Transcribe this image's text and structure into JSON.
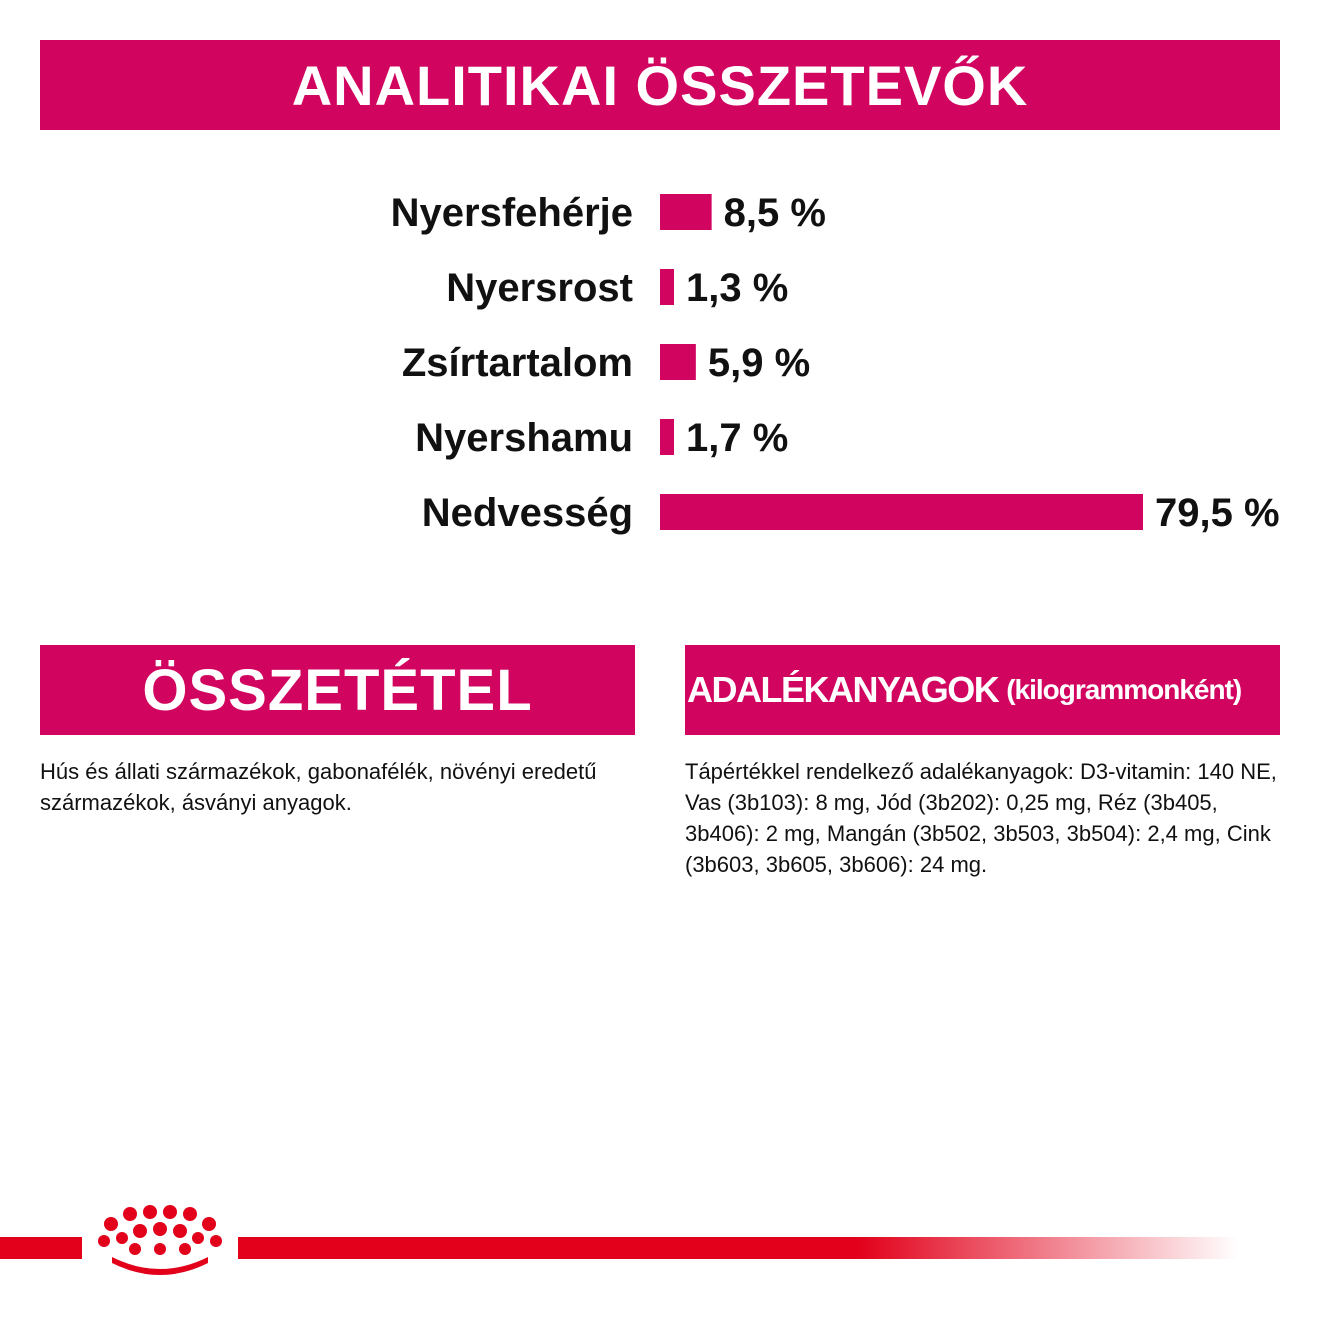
{
  "headings": {
    "analytics": "ANALITIKAI ÖSSZETEVŐK",
    "composition": "ÖSSZETÉTEL",
    "additives": "ADALÉKANYAGOK",
    "additives_sub": "(kilogrammonként)"
  },
  "chart_data": {
    "type": "bar",
    "orientation": "horizontal",
    "title": "ANALITIKAI ÖSSZETEVŐK",
    "unit": "%",
    "categories": [
      "Nyersfehérje",
      "Nyersrost",
      "Zsírtartalom",
      "Nyershamu",
      "Nedvesség"
    ],
    "values": [
      8.5,
      1.3,
      5.9,
      1.7,
      79.5
    ],
    "value_labels": [
      "8,5 %",
      "1,3 %",
      "5,9 %",
      "1,7 %",
      "79,5 %"
    ],
    "xlim": [
      0,
      79.5
    ],
    "grid": false,
    "bar_color": "#d1045f"
  },
  "composition_text": "Hús és állati származékok, gabonafélék, növényi eredetű származékok, ásványi anyagok.",
  "additives_text": "Tápértékkel rendelkező adalékanyagok: D3-vitamin: 140 NE, Vas (3b103): 8 mg, Jód (3b202): 0,25 mg, Réz (3b405, 3b406): 2 mg, Mangán (3b502, 3b503, 3b504): 2,4 mg, Cink (3b603, 3b605, 3b606): 24 mg.",
  "colors": {
    "accent": "#d1045f",
    "footer_line": "#e2001a",
    "logo": "#e2001a"
  },
  "logo": {
    "icon": "crown-icon"
  }
}
